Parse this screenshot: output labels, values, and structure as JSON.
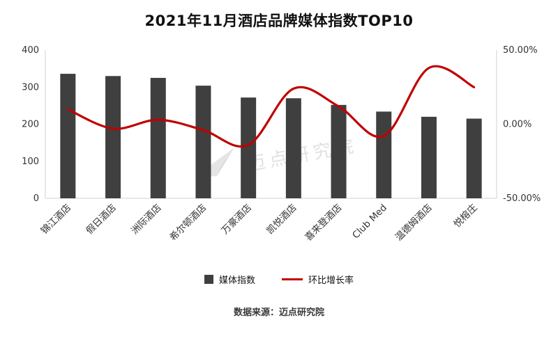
{
  "title": "2021年11月酒店品牌媒体指数TOP10",
  "watermark": "迈点研究院",
  "source": "数据来源：迈点研究院",
  "chart_data": {
    "type": "bar",
    "subtype": "bar+line combo, dual axis",
    "title": "2021年11月酒店品牌媒体指数TOP10",
    "categories": [
      "锦江酒店",
      "假日酒店",
      "洲际酒店",
      "希尔顿酒店",
      "万豪酒店",
      "凯悦酒店",
      "喜来登酒店",
      "Club Med",
      "温德姆酒店",
      "悦榕庄"
    ],
    "series": [
      {
        "name": "媒体指数",
        "type": "bar",
        "axis": "left",
        "color": "#3f3f3f",
        "values": [
          336,
          330,
          325,
          304,
          272,
          270,
          252,
          234,
          220,
          215
        ]
      },
      {
        "name": "环比增长率",
        "type": "line",
        "axis": "right",
        "unit": "percent",
        "color": "#c00000",
        "values": [
          10,
          -3,
          3,
          -4,
          -14,
          24,
          12,
          -8,
          38,
          25
        ]
      }
    ],
    "left_axis": {
      "min": 0,
      "max": 400,
      "ticks": [
        0,
        100,
        200,
        300,
        400
      ]
    },
    "right_axis": {
      "min": -50,
      "max": 50,
      "tick_values": [
        -50,
        0,
        50
      ],
      "ticks": [
        "-50.00%",
        "0.00%",
        "50.00%"
      ]
    },
    "legend_position": "bottom",
    "grid": false
  }
}
